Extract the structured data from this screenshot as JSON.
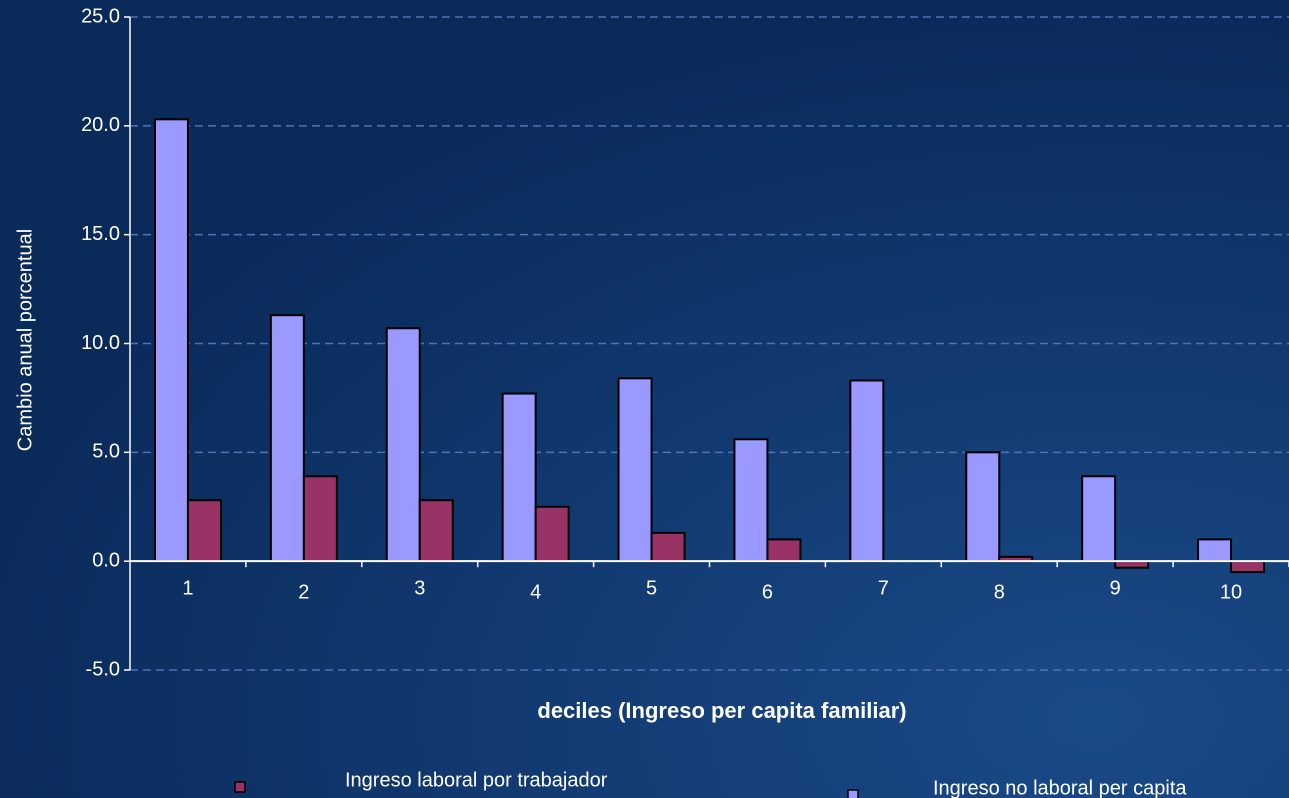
{
  "chart_data": {
    "type": "bar",
    "x_label": "deciles (Ingreso per capita familiar)",
    "y_label": "Cambio anual porcentual",
    "categories": [
      "1",
      "2",
      "3",
      "4",
      "5",
      "6",
      "7",
      "8",
      "9",
      "10"
    ],
    "series": [
      {
        "name": "Ingreso laboral por trabajador",
        "color": "#993366",
        "values": [
          2.8,
          3.9,
          2.8,
          2.5,
          1.3,
          1.0,
          0.0,
          0.2,
          -0.3,
          -0.5
        ]
      },
      {
        "name": "Ingreso no laboral per capita",
        "color": "#9999ff",
        "values": [
          20.3,
          11.3,
          10.7,
          7.7,
          8.4,
          5.6,
          8.3,
          5.0,
          3.9,
          1.0
        ]
      }
    ],
    "ylim": [
      -5,
      25
    ],
    "yticks": [
      {
        "value": -5,
        "label": "-5.0"
      },
      {
        "value": 0,
        "label": "0.0"
      },
      {
        "value": 5,
        "label": "5.0"
      },
      {
        "value": 10,
        "label": "10.0"
      },
      {
        "value": 15,
        "label": "15.0"
      },
      {
        "value": 20,
        "label": "20.0"
      },
      {
        "value": 25,
        "label": "25.0"
      }
    ],
    "grid": true
  }
}
